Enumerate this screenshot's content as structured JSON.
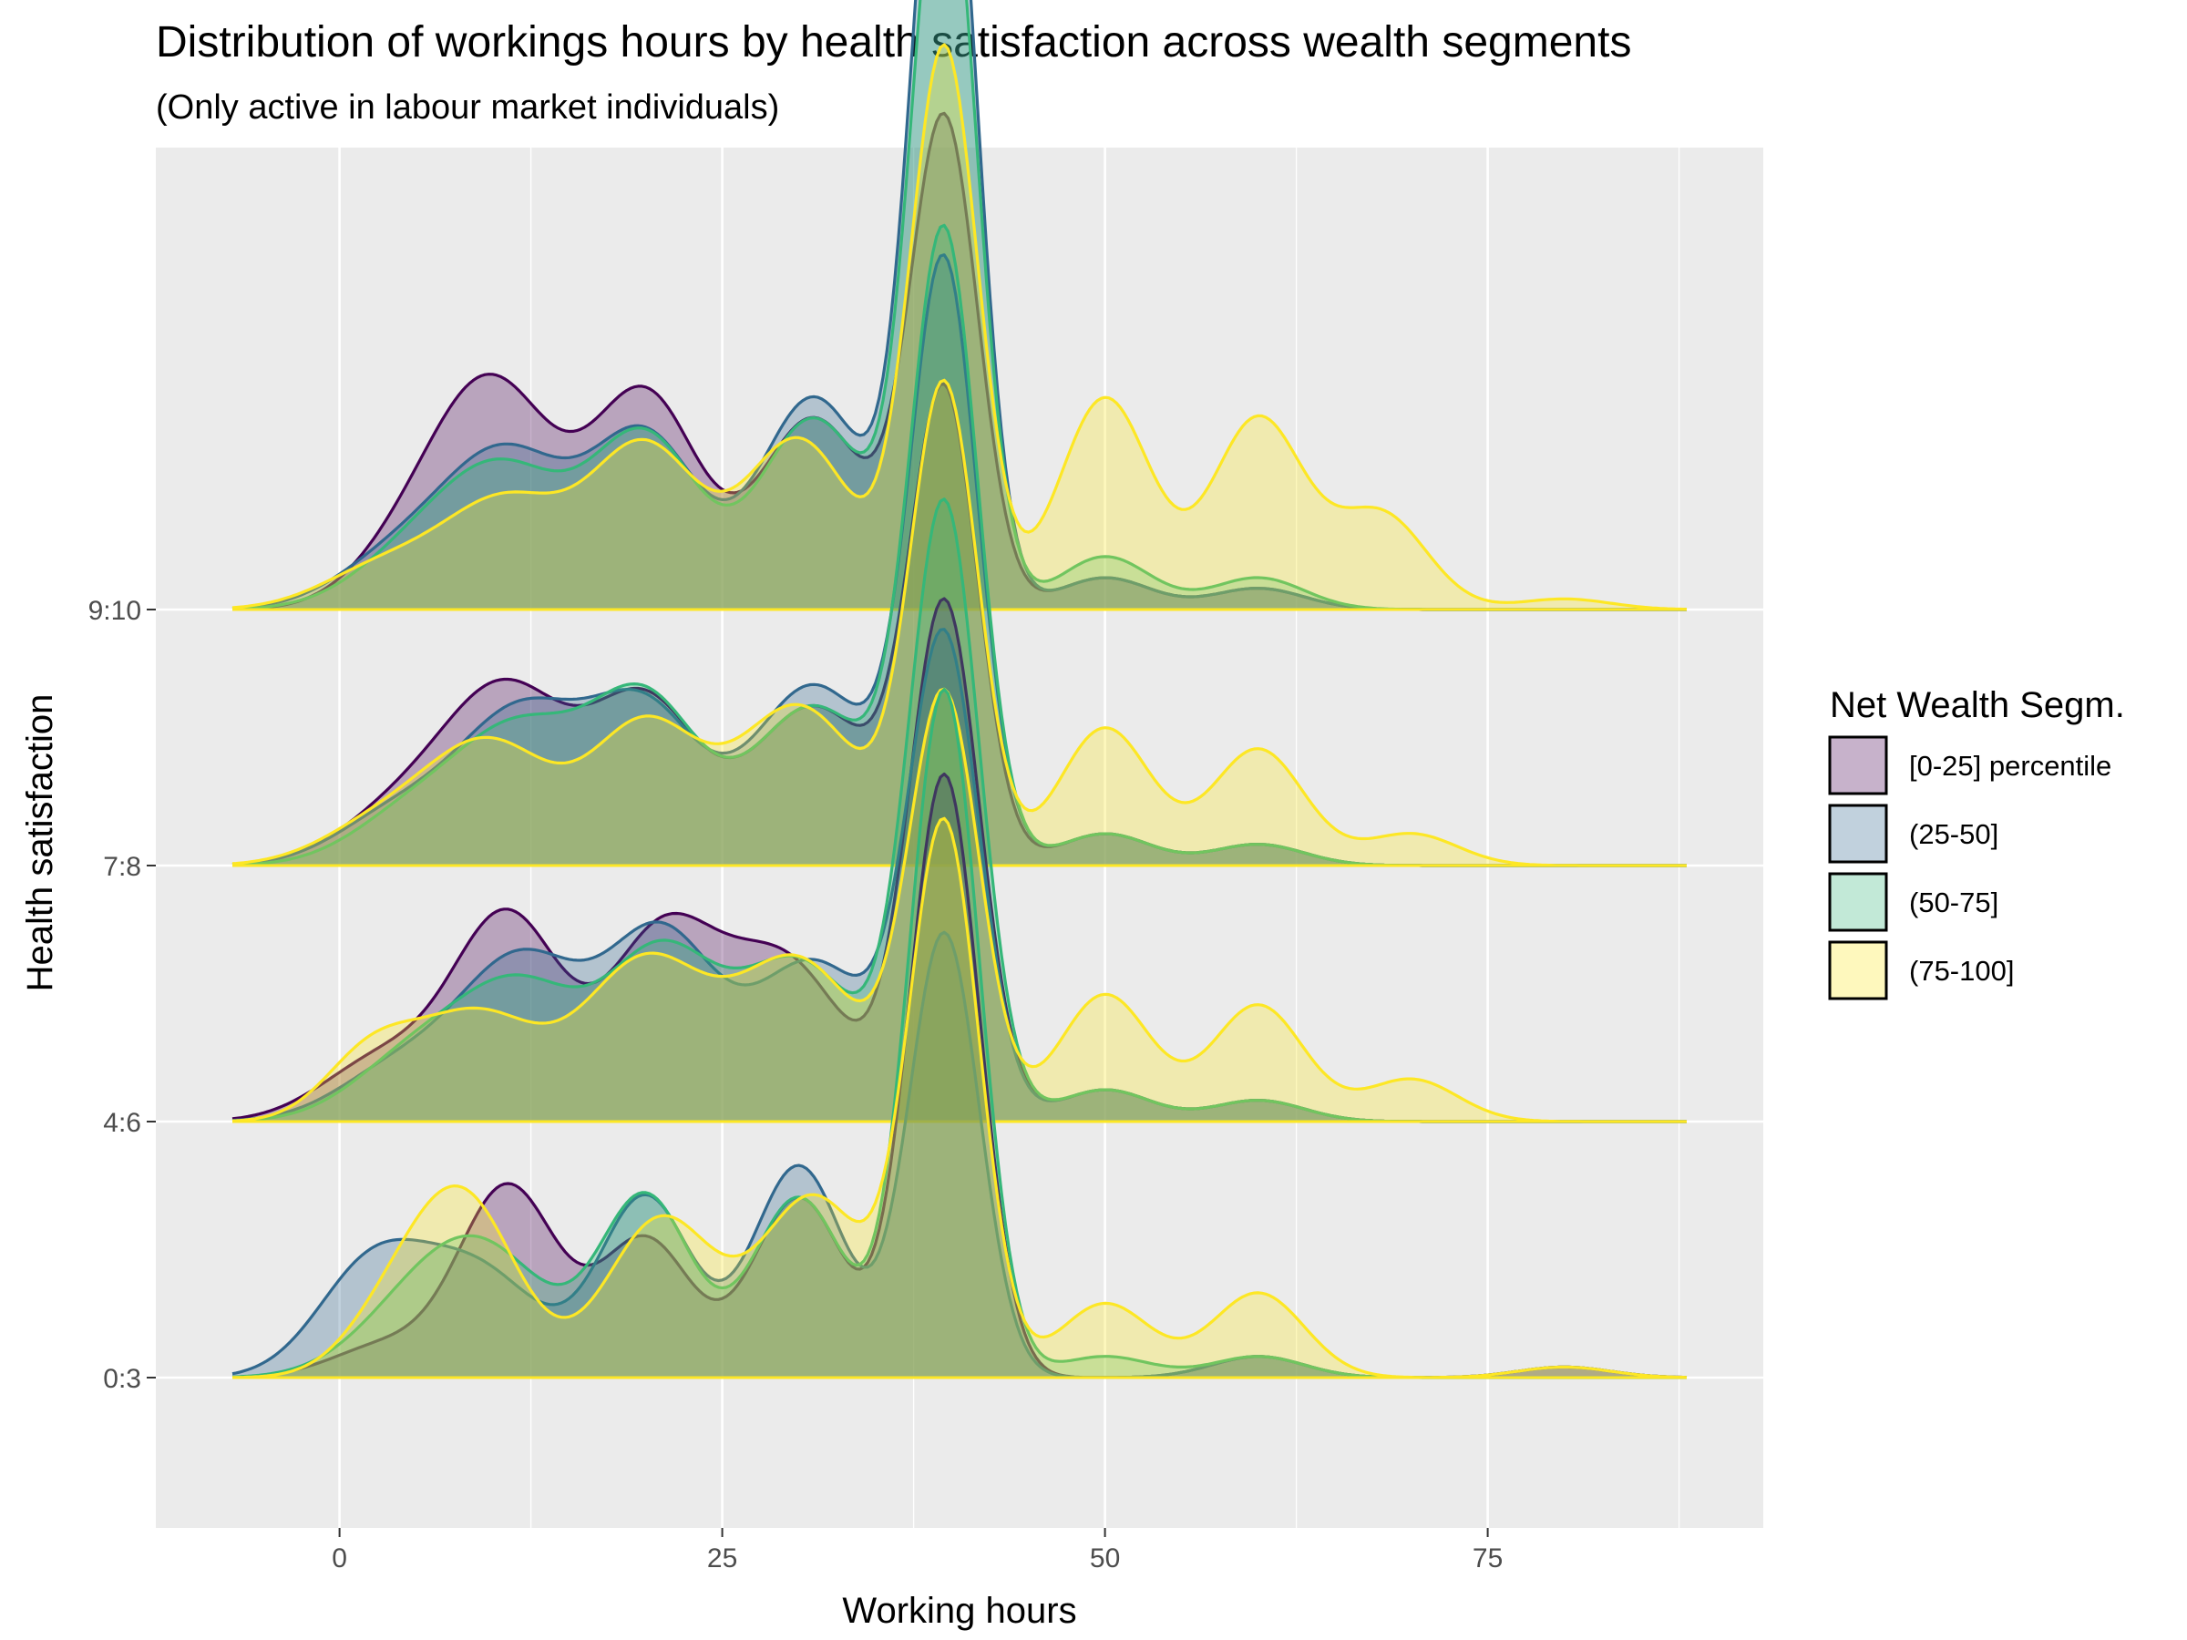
{
  "chart_data": {
    "type": "ridgeline",
    "title": "Distribution of workings hours by health satisfaction across wealth segments",
    "subtitle": "(Only active in labour market individuals)",
    "xlabel": "Working hours",
    "ylabel": "Health satisfaction",
    "xlim": [
      -12,
      93
    ],
    "x_ticks": [
      0,
      25,
      50,
      75
    ],
    "x_tick_labels": [
      "0",
      "25",
      "50",
      "75"
    ],
    "y_categories": [
      "0:3",
      "4:6",
      "7:8",
      "9:10"
    ],
    "density_x_range": [
      -7,
      88
    ],
    "legend_title": "Net Wealth Segm.",
    "legend_position": "right",
    "series": [
      {
        "name": "[0-25] percentile",
        "color": "#440154",
        "rows": {
          "0:3": {
            "peak": 0.57,
            "bumps": [
              [
                3,
                3.5,
                0.03
              ],
              [
                11,
                3.2,
                0.18
              ],
              [
                20,
                3,
                0.13
              ],
              [
                30,
                3,
                0.17
              ],
              [
                39.5,
                2.3,
                0.57
              ],
              [
                60,
                3,
                0.02
              ],
              [
                80,
                3,
                0.01
              ]
            ]
          },
          "4:6": {
            "peak": 0.49,
            "bumps": [
              [
                3,
                4,
                0.06
              ],
              [
                11,
                3.5,
                0.19
              ],
              [
                21,
                3.5,
                0.17
              ],
              [
                29,
                4,
                0.15
              ],
              [
                39.5,
                2.3,
                0.49
              ],
              [
                50,
                3,
                0.03
              ],
              [
                60,
                3,
                0.02
              ]
            ]
          },
          "7:8": {
            "peak": 0.44,
            "bumps": [
              [
                4,
                4,
                0.05
              ],
              [
                11,
                4,
                0.16
              ],
              [
                20,
                3.5,
                0.15
              ],
              [
                31,
                4,
                0.15
              ],
              [
                39.5,
                2.2,
                0.44
              ],
              [
                50,
                3,
                0.03
              ],
              [
                60,
                3,
                0.02
              ]
            ]
          },
          "9:10": {
            "peak": 0.46,
            "bumps": [
              [
                4,
                3.5,
                0.04
              ],
              [
                10,
                4,
                0.21
              ],
              [
                20,
                3.5,
                0.2
              ],
              [
                31,
                3.5,
                0.18
              ],
              [
                39.5,
                2.2,
                0.46
              ],
              [
                50,
                3,
                0.03
              ],
              [
                60,
                3,
                0.02
              ]
            ]
          }
        }
      },
      {
        "name": "(25-50]",
        "color": "#31688e",
        "rows": {
          "0:3": {
            "peak": 0.42,
            "bumps": [
              [
                2,
                3.5,
                0.1
              ],
              [
                9,
                4,
                0.1
              ],
              [
                20,
                3,
                0.17
              ],
              [
                30,
                3,
                0.2
              ],
              [
                39.5,
                2.3,
                0.42
              ],
              [
                60,
                3,
                0.02
              ],
              [
                80,
                3,
                0.01
              ]
            ]
          },
          "4:6": {
            "peak": 0.45,
            "bumps": [
              [
                4,
                4,
                0.05
              ],
              [
                12,
                4,
                0.15
              ],
              [
                21,
                3.5,
                0.17
              ],
              [
                31,
                4,
                0.15
              ],
              [
                39.5,
                2.3,
                0.45
              ],
              [
                50,
                3,
                0.03
              ],
              [
                60,
                3,
                0.02
              ]
            ]
          },
          "7:8": {
            "peak": 0.56,
            "bumps": [
              [
                4,
                4,
                0.05
              ],
              [
                12,
                4,
                0.14
              ],
              [
                20,
                3.5,
                0.14
              ],
              [
                31,
                4,
                0.17
              ],
              [
                39.5,
                2.2,
                0.56
              ],
              [
                50,
                3,
                0.03
              ],
              [
                60,
                3,
                0.02
              ]
            ]
          },
          "9:10": {
            "peak": 0.81,
            "bumps": [
              [
                4,
                4,
                0.05
              ],
              [
                11,
                4,
                0.14
              ],
              [
                20,
                3.5,
                0.16
              ],
              [
                31,
                3.5,
                0.2
              ],
              [
                39.5,
                2.1,
                0.81
              ],
              [
                50,
                3,
                0.03
              ],
              [
                60,
                3,
                0.02
              ]
            ]
          }
        }
      },
      {
        "name": "(50-75]",
        "color": "#35b779",
        "rows": {
          "0:3": {
            "peak": 0.65,
            "bumps": [
              [
                5,
                4,
                0.06
              ],
              [
                10,
                4,
                0.1
              ],
              [
                20,
                3,
                0.17
              ],
              [
                30,
                3,
                0.17
              ],
              [
                39.5,
                2.3,
                0.65
              ],
              [
                50,
                3,
                0.02
              ],
              [
                60,
                3,
                0.02
              ]
            ]
          },
          "4:6": {
            "peak": 0.58,
            "bumps": [
              [
                5,
                4,
                0.06
              ],
              [
                12,
                4,
                0.12
              ],
              [
                21,
                3.5,
                0.15
              ],
              [
                30,
                4,
                0.15
              ],
              [
                39.5,
                2.3,
                0.58
              ],
              [
                50,
                3,
                0.03
              ],
              [
                60,
                3,
                0.02
              ]
            ]
          },
          "7:8": {
            "peak": 0.59,
            "bumps": [
              [
                5,
                4,
                0.05
              ],
              [
                12,
                4,
                0.12
              ],
              [
                20,
                3.5,
                0.15
              ],
              [
                31,
                4,
                0.15
              ],
              [
                39.5,
                2.2,
                0.59
              ],
              [
                50,
                3,
                0.03
              ],
              [
                60,
                3,
                0.02
              ]
            ]
          },
          "9:10": {
            "peak": 0.73,
            "bumps": [
              [
                5,
                4,
                0.05
              ],
              [
                11,
                4,
                0.12
              ],
              [
                20,
                3.5,
                0.16
              ],
              [
                31,
                3.5,
                0.18
              ],
              [
                39.5,
                2.1,
                0.73
              ],
              [
                50,
                3,
                0.05
              ],
              [
                60,
                3,
                0.03
              ]
            ]
          }
        }
      },
      {
        "name": "(75-100]",
        "color": "#fde725",
        "rows": {
          "0:3": {
            "peak": 0.52,
            "bumps": [
              [
                3,
                3,
                0.04
              ],
              [
                8,
                3.5,
                0.17
              ],
              [
                21,
                3.5,
                0.15
              ],
              [
                31,
                3.5,
                0.17
              ],
              [
                39.5,
                2.3,
                0.52
              ],
              [
                50,
                3,
                0.07
              ],
              [
                60,
                3,
                0.08
              ],
              [
                80,
                3,
                0.01
              ]
            ]
          },
          "4:6": {
            "peak": 0.4,
            "bumps": [
              [
                2,
                3,
                0.06
              ],
              [
                9,
                4,
                0.1
              ],
              [
                20,
                4,
                0.15
              ],
              [
                30,
                4,
                0.15
              ],
              [
                39.5,
                2.3,
                0.4
              ],
              [
                50,
                3,
                0.12
              ],
              [
                60,
                3,
                0.11
              ],
              [
                70,
                3,
                0.04
              ]
            ]
          },
          "7:8": {
            "peak": 0.45,
            "bumps": [
              [
                3,
                4,
                0.04
              ],
              [
                10,
                4,
                0.11
              ],
              [
                20,
                3.5,
                0.13
              ],
              [
                30,
                4,
                0.15
              ],
              [
                39.5,
                2.2,
                0.45
              ],
              [
                50,
                3,
                0.13
              ],
              [
                60,
                3,
                0.11
              ],
              [
                70,
                3,
                0.03
              ]
            ]
          },
          "9:10": {
            "peak": 0.53,
            "bumps": [
              [
                3,
                4,
                0.04
              ],
              [
                11,
                4,
                0.1
              ],
              [
                20,
                3.5,
                0.15
              ],
              [
                30,
                3.5,
                0.16
              ],
              [
                39.5,
                2.2,
                0.53
              ],
              [
                50,
                3,
                0.2
              ],
              [
                60,
                3,
                0.18
              ],
              [
                68,
                3,
                0.09
              ],
              [
                80,
                3,
                0.01
              ]
            ]
          }
        }
      }
    ]
  }
}
